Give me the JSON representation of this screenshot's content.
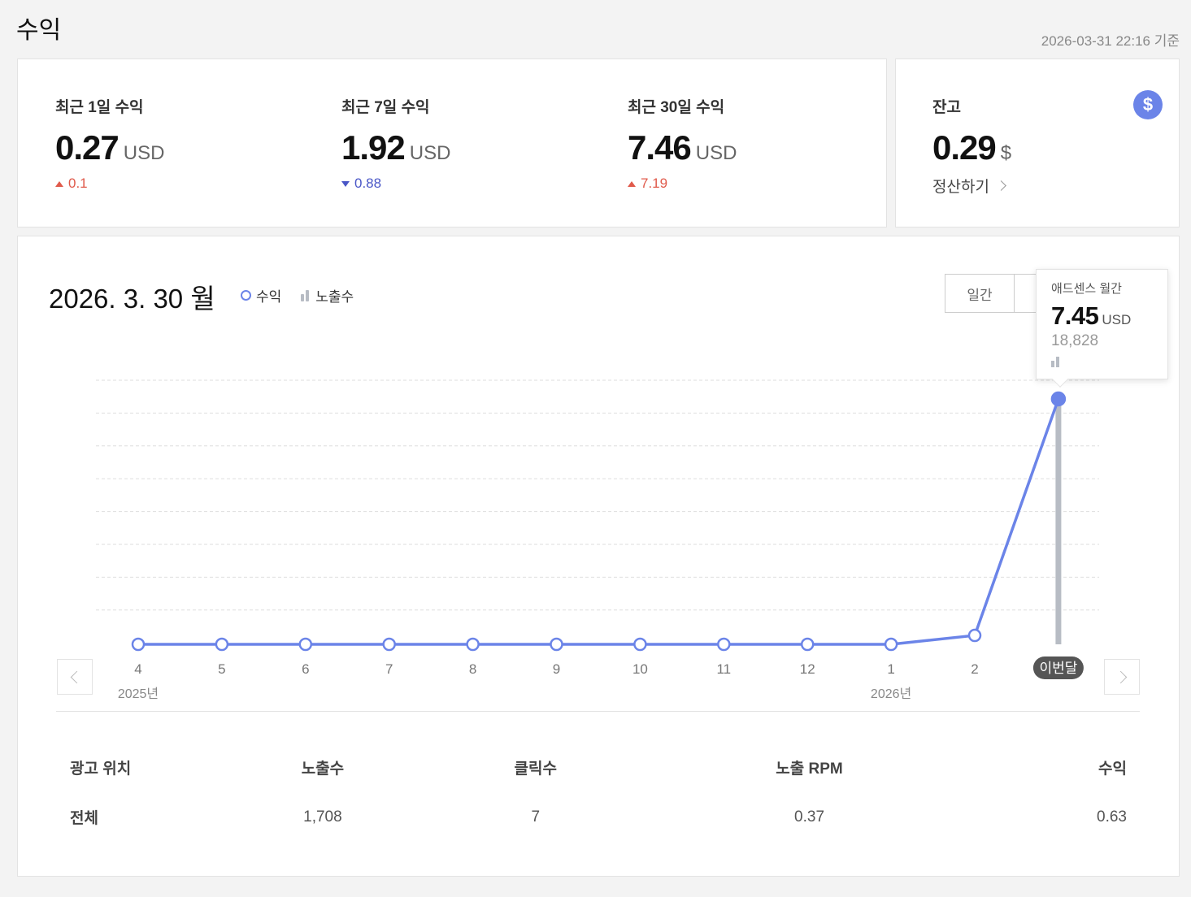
{
  "header": {
    "title": "수익",
    "as_of": "2026-03-31 22:16 기준"
  },
  "summary": {
    "stats": [
      {
        "label": "최근 1일 수익",
        "value": "0.27",
        "unit": "USD",
        "delta": "0.1",
        "direction": "up"
      },
      {
        "label": "최근 7일 수익",
        "value": "1.92",
        "unit": "USD",
        "delta": "0.88",
        "direction": "down"
      },
      {
        "label": "최근 30일 수익",
        "value": "7.46",
        "unit": "USD",
        "delta": "7.19",
        "direction": "up"
      }
    ]
  },
  "balance": {
    "label": "잔고",
    "value": "0.29",
    "unit": "$",
    "settle_label": "정산하기",
    "icon": "dollar-icon"
  },
  "chart_panel": {
    "date_label": "2026. 3. 30 월",
    "legend": {
      "revenue": "수익",
      "impressions": "노출수"
    },
    "period_buttons": [
      "일간"
    ],
    "tooltip": {
      "title": "애드센스 월간",
      "value": "7.45",
      "unit": "USD",
      "impressions": "18,828"
    },
    "current_month_badge": "이번달",
    "year_labels": [
      "2025년",
      "2026년"
    ]
  },
  "chart_data": {
    "type": "line",
    "categories": [
      "4",
      "5",
      "6",
      "7",
      "8",
      "9",
      "10",
      "11",
      "12",
      "1",
      "2",
      "이번달"
    ],
    "series": [
      {
        "name": "수익",
        "values": [
          0,
          0,
          0,
          0,
          0,
          0,
          0,
          0,
          0,
          0,
          0.27,
          7.45
        ]
      },
      {
        "name": "노출수",
        "values": [
          0,
          0,
          0,
          0,
          0,
          0,
          0,
          0,
          0,
          0,
          0,
          18828
        ]
      }
    ],
    "grid": true,
    "colors": {
      "revenue": "#6b84e8",
      "impressions": "#b7bcc4"
    }
  },
  "table": {
    "headers": [
      "광고 위치",
      "노출수",
      "클릭수",
      "노출 RPM",
      "수익"
    ],
    "rows": [
      [
        "전체",
        "1,708",
        "7",
        "0.37",
        "0.63"
      ]
    ]
  }
}
